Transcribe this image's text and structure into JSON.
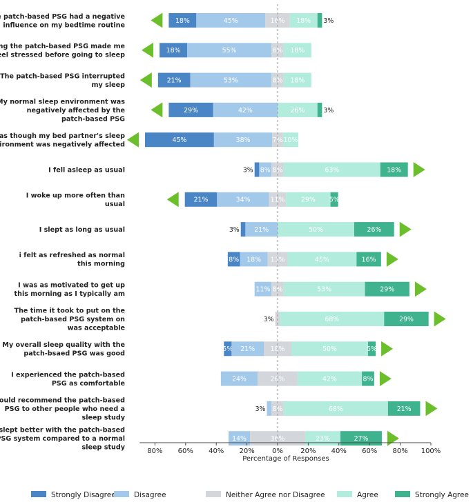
{
  "chart_data": {
    "type": "bar",
    "orientation": "horizontal-diverging",
    "xlabel": "Percentage of Responses",
    "x_ticks": [
      "80%",
      "60%",
      "40%",
      "20%",
      "0%",
      "20%",
      "40%",
      "60%",
      "80%",
      "100%"
    ],
    "xlim": [
      -90,
      100
    ],
    "center_line": "dashed",
    "legend_position": "bottom",
    "series": [
      {
        "name": "Strongly Disagree",
        "color": "#4a86c5"
      },
      {
        "name": "Disagree",
        "color": "#a3c9ea"
      },
      {
        "name": "Neither Agree nor Disagree",
        "color": "#d3d6da"
      },
      {
        "name": "Agree",
        "color": "#b2ecdd"
      },
      {
        "name": "Strongly Agree",
        "color": "#3fb38d"
      }
    ],
    "neutral_color": "#d3d6da",
    "arrow_color": "#6bbf2a",
    "categories": [
      {
        "label": [
          "The patch-based PSG had a negative",
          "influence on my bedtime routine"
        ],
        "values": [
          18,
          45,
          16,
          18,
          3
        ],
        "arrow": "left",
        "labels": [
          "18%",
          "45%",
          "16%",
          "18%",
          "3%"
        ]
      },
      {
        "label": [
          "Wearing the patch-based PSG made me",
          "feel stressed before going to sleep"
        ],
        "values": [
          18,
          55,
          8,
          18,
          0
        ],
        "arrow": "left",
        "labels": [
          "18%",
          "55%",
          "8%",
          "18%",
          ""
        ]
      },
      {
        "label": [
          "The patch-based PSG interrupted",
          "my sleep"
        ],
        "values": [
          21,
          53,
          8,
          18,
          0
        ],
        "arrow": "left",
        "labels": [
          "21%",
          "53%",
          "8%",
          "18%",
          ""
        ]
      },
      {
        "label": [
          "My normal sleep environment was",
          "negatively affected by the",
          "patch-based PSG"
        ],
        "values": [
          29,
          42,
          0,
          26,
          3
        ],
        "arrow": "left",
        "labels": [
          "29%",
          "42%",
          "",
          "26%",
          "3%"
        ]
      },
      {
        "label": [
          "I feel as though my bed partner's sleep",
          "environment was negatively affected"
        ],
        "values": [
          45,
          38,
          7,
          10,
          0
        ],
        "arrow": "left",
        "labels": [
          "45%",
          "38%",
          "7%",
          "10%",
          ""
        ]
      },
      {
        "label": [
          "I fell asleep as usual"
        ],
        "values": [
          3,
          8,
          8,
          63,
          18
        ],
        "arrow": "right",
        "labels": [
          "3%",
          "8%",
          "8%",
          "63%",
          "18%"
        ]
      },
      {
        "label": [
          "I woke up more often than",
          "usual"
        ],
        "values": [
          21,
          34,
          11,
          29,
          5
        ],
        "arrow": "left",
        "labels": [
          "21%",
          "34%",
          "11%",
          "29%",
          "5%"
        ]
      },
      {
        "label": [
          "I slept as long as usual"
        ],
        "values": [
          3,
          21,
          0,
          50,
          26
        ],
        "arrow": "right",
        "labels": [
          "3%",
          "21%",
          "",
          "50%",
          "26%"
        ]
      },
      {
        "label": [
          "i felt as refreshed as normal",
          "this morning"
        ],
        "values": [
          8,
          18,
          13,
          45,
          16
        ],
        "arrow": "right",
        "labels": [
          "8%",
          "18%",
          "13%",
          "45%",
          "16%"
        ]
      },
      {
        "label": [
          "I was as motivated to get up",
          "this morning as I typically am"
        ],
        "values": [
          0,
          11,
          8,
          53,
          29
        ],
        "arrow": "right",
        "labels": [
          "",
          "11%",
          "8%",
          "53%",
          "29%"
        ]
      },
      {
        "label": [
          "The time it took to put on the",
          "patch-based PSG system on",
          "was acceptable"
        ],
        "values": [
          0,
          0,
          3,
          68,
          29
        ],
        "arrow": "right",
        "labels": [
          "",
          "",
          "3%",
          "68%",
          "29%"
        ]
      },
      {
        "label": [
          "My overall sleep quality with the",
          "patch-bsaed PSG was good"
        ],
        "values": [
          5,
          21,
          18,
          50,
          5
        ],
        "arrow": "right",
        "labels": [
          "5%",
          "21%",
          "18%",
          "50%",
          "5%"
        ]
      },
      {
        "label": [
          "I experienced the patch-based",
          "PSG as comfortable"
        ],
        "values": [
          0,
          24,
          26,
          42,
          8
        ],
        "arrow": "right",
        "labels": [
          "",
          "24%",
          "26%",
          "42%",
          "8%"
        ]
      },
      {
        "label": [
          "I would recommend the patch-based",
          "PSG to other people who need a",
          "sleep study"
        ],
        "values": [
          0,
          3,
          8,
          68,
          21
        ],
        "arrow": "right",
        "labels": [
          "",
          "3%",
          "8%",
          "68%",
          "21%"
        ]
      },
      {
        "label": [
          "I slept better with the patch-based",
          "PSG system compared to a normal",
          "sleep study"
        ],
        "values": [
          0,
          14,
          36,
          23,
          27
        ],
        "arrow": "right",
        "labels": [
          "",
          "14%",
          "36%",
          "23%",
          "27%"
        ]
      }
    ]
  }
}
